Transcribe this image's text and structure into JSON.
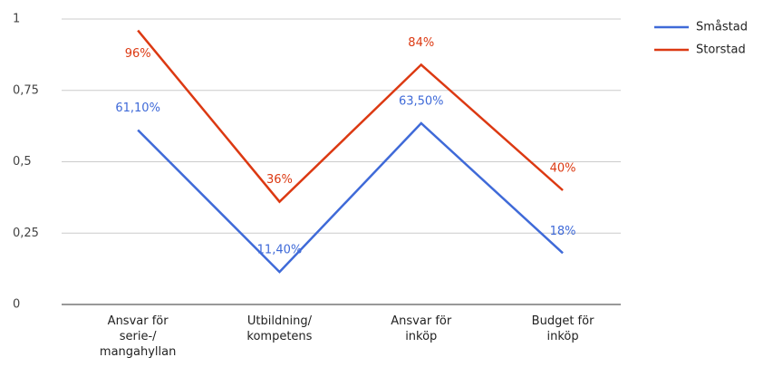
{
  "chart_data": {
    "type": "line",
    "categories": [
      "Ansvar för\nserie-/\nmangahyllan",
      "Utbildning/\nkompetens",
      "Ansvar för\ninköp",
      "Budget för\ninköp"
    ],
    "series": [
      {
        "name": "Småstad",
        "color": "#3f6ad8",
        "values": [
          0.611,
          0.114,
          0.635,
          0.18
        ],
        "value_labels": [
          "61,10%",
          "11,40%",
          "63,50%",
          "18%"
        ]
      },
      {
        "name": "Storstad",
        "color": "#dc3912",
        "values": [
          0.96,
          0.36,
          0.84,
          0.4
        ],
        "value_labels": [
          "96%",
          "36%",
          "84%",
          "40%"
        ]
      }
    ],
    "ylim": [
      0,
      1
    ],
    "yticks": [
      0,
      {
        "value": 0.25,
        "label": "0,25"
      },
      {
        "value": 0.5,
        "label": "0,5"
      },
      {
        "value": 0.75,
        "label": "0,75"
      },
      1
    ],
    "grid": true,
    "legend": "right"
  }
}
